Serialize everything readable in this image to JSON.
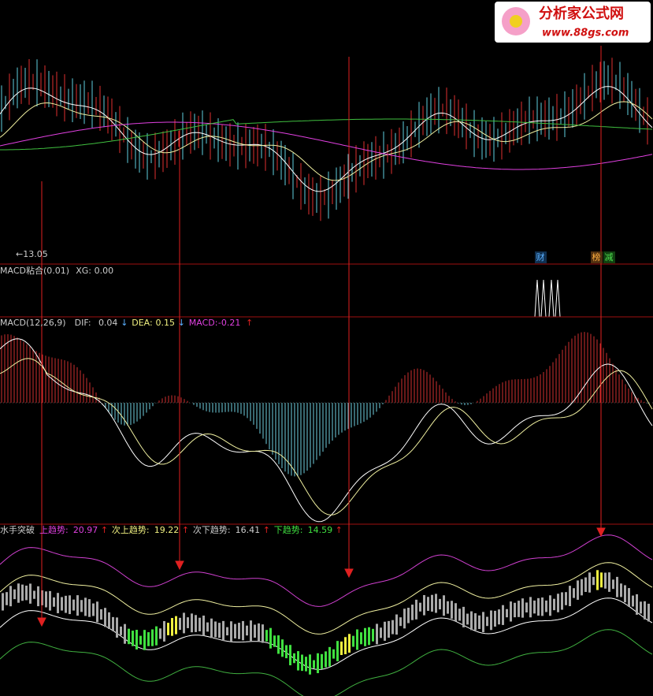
{
  "logo": {
    "title": "分析家公式网",
    "url": "www.88gs.com"
  },
  "price_panel": {
    "low_label": "←13.05",
    "markers": [
      "财",
      "榜",
      "减"
    ]
  },
  "xg_panel": {
    "name": "MACD粘合(0.01)",
    "items": [
      {
        "label": "XG:",
        "value": "0.00"
      }
    ]
  },
  "macd_panel": {
    "name": "MACD(12,26,9)",
    "items": [
      {
        "label": "DIF:",
        "value": "0.04",
        "arrow": "↓"
      },
      {
        "label": "DEA:",
        "value": "0.15",
        "arrow": "↓"
      },
      {
        "label": "MACD:",
        "value": "-0.21",
        "arrow": "↑"
      }
    ]
  },
  "trend_panel": {
    "name": "水手突破",
    "items": [
      {
        "label": "上趋势:",
        "value": "20.97",
        "arrow": "↑"
      },
      {
        "label": "次上趋势:",
        "value": "19.22",
        "arrow": "↑"
      },
      {
        "label": "次下趋势:",
        "value": "16.41",
        "arrow": "↑"
      },
      {
        "label": "下趋势:",
        "value": "14.59",
        "arrow": "↑"
      }
    ]
  }
}
